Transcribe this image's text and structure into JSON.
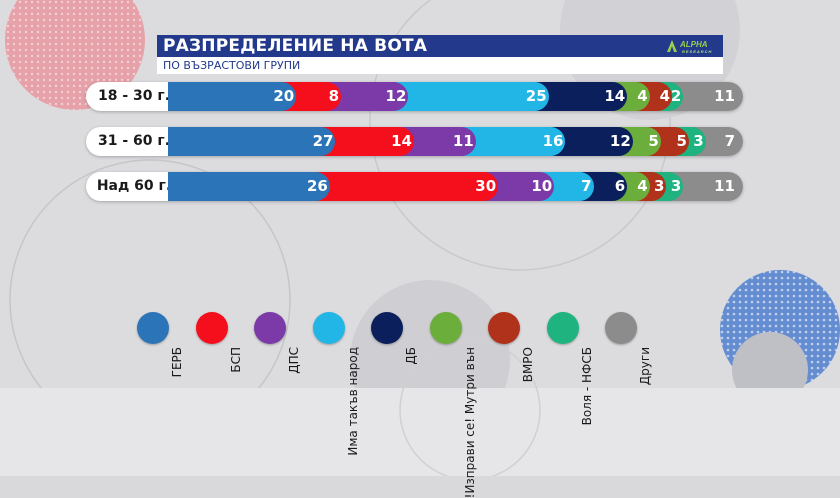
{
  "title": "РАЗПРЕДЕЛЕНИЕ НА ВОТА",
  "subtitle": "ПО ВЪЗРАСТОВИ ГРУПИ",
  "logo": {
    "text": "ALPHA",
    "sub": "RESEARCH"
  },
  "chart_data": {
    "type": "bar",
    "orientation": "horizontal-stacked",
    "title": "РАЗПРЕДЕЛЕНИЕ НА ВОТА",
    "subtitle": "ПО ВЪЗРАСТОВИ ГРУПИ",
    "categories": [
      "18 - 30 г.",
      "31 - 60 г.",
      "Над 60 г."
    ],
    "series": [
      {
        "name": "ГЕРБ",
        "color": "#2c74b8",
        "values": [
          20,
          27,
          26
        ]
      },
      {
        "name": "БСП",
        "color": "#f50f1c",
        "values": [
          8,
          14,
          30
        ]
      },
      {
        "name": "ДПС",
        "color": "#7b3aa8",
        "values": [
          12,
          11,
          10
        ]
      },
      {
        "name": "Има такъв народ",
        "color": "#22b6e6",
        "values": [
          25,
          16,
          7
        ]
      },
      {
        "name": "ДБ",
        "color": "#0a1f5c",
        "values": [
          14,
          12,
          6
        ]
      },
      {
        "name": "Изправи се! Мутри вън!",
        "color": "#6cae3c",
        "values": [
          4,
          5,
          4
        ]
      },
      {
        "name": "ВМРО",
        "color": "#b0321b",
        "values": [
          4,
          5,
          3
        ]
      },
      {
        "name": "Воля - НФСБ",
        "color": "#1fb37f",
        "values": [
          2,
          3,
          3
        ]
      },
      {
        "name": "Други",
        "color": "#8c8c8c",
        "values": [
          11,
          7,
          11
        ]
      }
    ],
    "legend_position": "bottom",
    "grid": false
  }
}
